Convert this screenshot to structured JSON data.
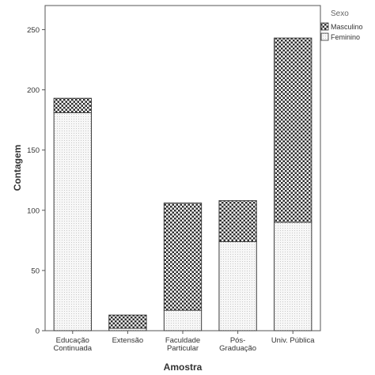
{
  "chart_data": {
    "type": "bar",
    "stacked": true,
    "categories": [
      [
        "Educação",
        "Continuada"
      ],
      [
        "Extensão"
      ],
      [
        "Faculdade",
        "Particular"
      ],
      [
        "Pós-",
        "Graduação"
      ],
      [
        "Univ. Pública"
      ]
    ],
    "series": [
      {
        "name": "Feminino",
        "values": [
          181,
          2,
          17,
          74,
          90
        ],
        "pattern": "dots",
        "color": "#f2f2f2"
      },
      {
        "name": "Masculino",
        "values": [
          12,
          11,
          89,
          34,
          153
        ],
        "pattern": "checker",
        "color": "#3a3a3a"
      }
    ],
    "xlabel": "Amostra",
    "ylabel": "Contagem",
    "ylim": [
      0,
      270
    ],
    "yticks": [
      0,
      50,
      100,
      150,
      200,
      250
    ],
    "legend": {
      "title": "Sexo",
      "placement": "top-right outside",
      "entries": [
        "Masculino",
        "Feminino"
      ]
    },
    "grid": false
  }
}
